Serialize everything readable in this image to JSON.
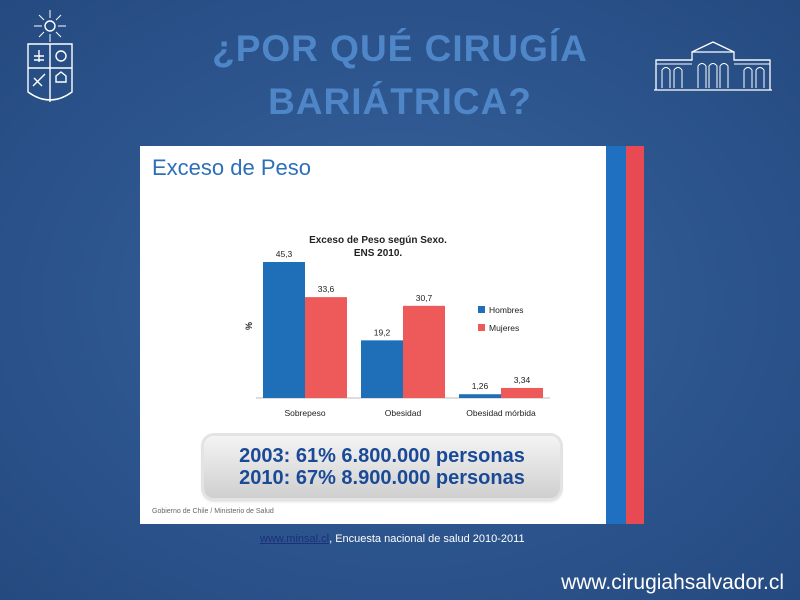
{
  "title": {
    "line1": "¿POR QUÉ CIRUGÍA",
    "line2": "BARIÁTRICA?"
  },
  "slide": {
    "heading": "Exceso de Peso",
    "source": "Gobierno de Chile / Ministerio de Salud",
    "stats": {
      "line1": "2003: 61% 6.800.000 personas",
      "line2": "2010: 67% 8.900.000 personas"
    }
  },
  "chart_data": {
    "type": "bar",
    "title": "Exceso de Peso según Sexo.",
    "subtitle": "ENS 2010.",
    "ylabel": "%",
    "xlabel": "",
    "categories": [
      "Sobrepeso",
      "Obesidad",
      "Obesidad mórbida"
    ],
    "series": [
      {
        "name": "Hombres",
        "values": [
          45.3,
          19.2,
          1.26
        ],
        "labels": [
          "45,3",
          "19,2",
          "1,26"
        ],
        "color": "#1f6fb8"
      },
      {
        "name": "Mujeres",
        "values": [
          33.6,
          30.7,
          3.34
        ],
        "labels": [
          "33,6",
          "30,7",
          "3,34"
        ],
        "color": "#ee5a5a"
      }
    ],
    "ylim": [
      0,
      50
    ],
    "grid": false,
    "legend": "right"
  },
  "footnote": {
    "link": "www.minsal.cl",
    "text": ", Encuesta nacional de salud 2010-2011"
  },
  "website": "www.cirugiahsalvador.cl",
  "colors": {
    "background": "#2f5790",
    "title": "#4e86c8",
    "stripe_blue": "#1f70c1",
    "stripe_red": "#e84a53"
  }
}
